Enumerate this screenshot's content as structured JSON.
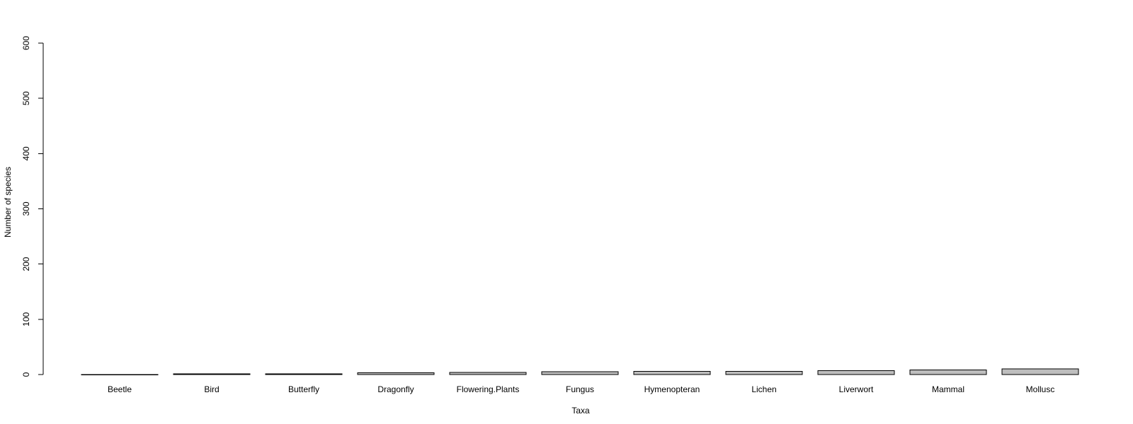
{
  "chart_data": {
    "type": "bar",
    "categories": [
      "Beetle",
      "Bird",
      "Butterfly",
      "Dragonfly",
      "Flowering.Plants",
      "Fungus",
      "Hymenopteran",
      "Lichen",
      "Liverwort",
      "Mammal",
      "Mollusc"
    ],
    "values": [
      0,
      1,
      1,
      3,
      4,
      5,
      6,
      6,
      7,
      8,
      10
    ],
    "xlabel": "Taxa",
    "ylabel": "Number of species",
    "ylim": [
      0,
      600
    ],
    "yticks": [
      "0",
      "100",
      "200",
      "300",
      "400",
      "500",
      "600"
    ],
    "bar_color": "#bebebe",
    "border_color": "#000000",
    "grid": false,
    "legend": false
  }
}
